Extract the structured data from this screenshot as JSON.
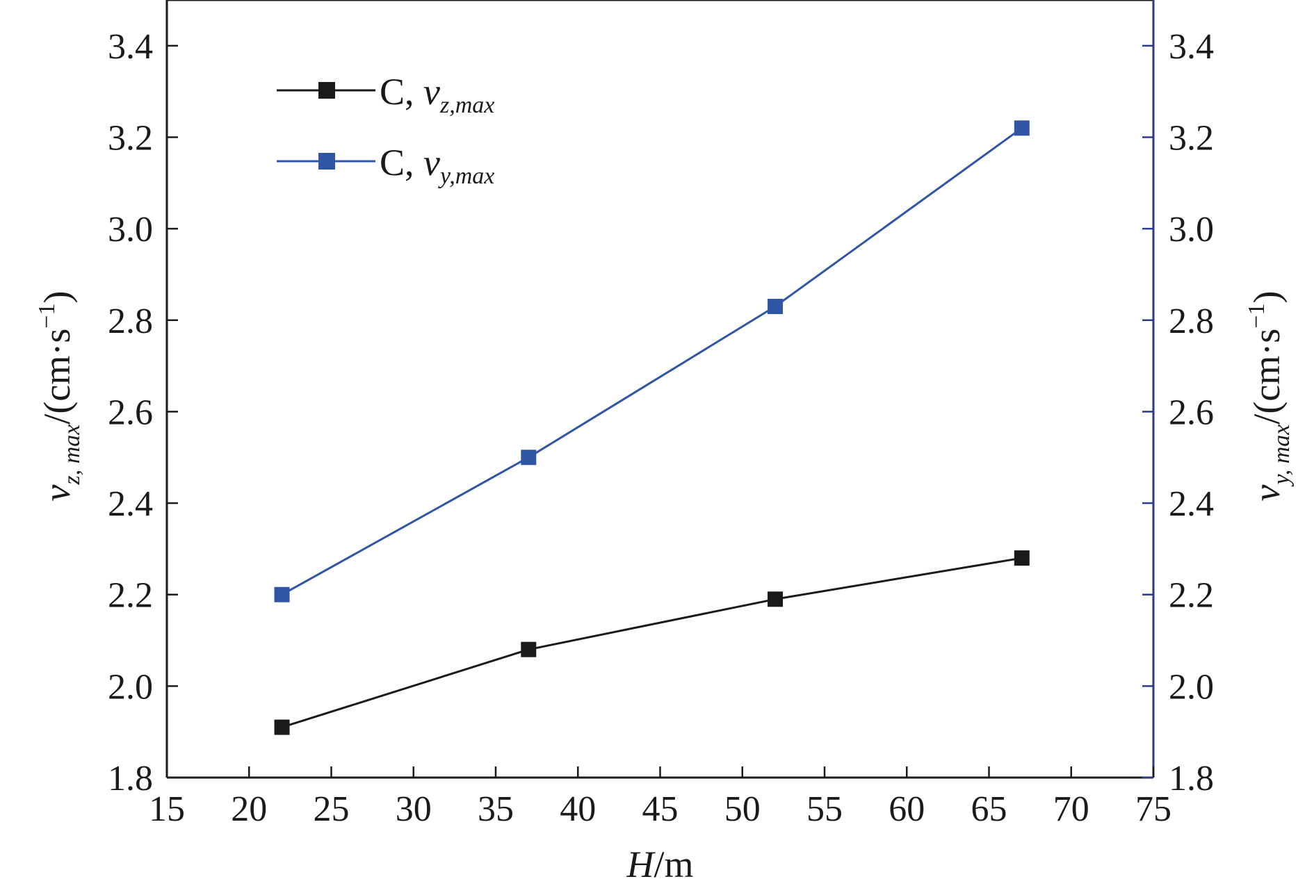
{
  "chart_data": {
    "type": "line",
    "x_axis": {
      "label_italic": "H",
      "label_unit": "/m",
      "range": [
        15,
        75
      ],
      "ticks": [
        15,
        20,
        25,
        30,
        35,
        40,
        45,
        50,
        55,
        60,
        65,
        70,
        75
      ],
      "tick_labels": [
        "15",
        "20",
        "25",
        "30",
        "35",
        "40",
        "45",
        "50",
        "55",
        "60",
        "65",
        "70",
        "75"
      ]
    },
    "y_left": {
      "label_var": "v",
      "label_sub": "z, max",
      "label_unit_prefix": "/(cm·s",
      "label_sup": "−1",
      "label_unit_suffix": ")",
      "range": [
        1.8,
        3.5
      ],
      "ticks": [
        1.8,
        2.0,
        2.2,
        2.4,
        2.6,
        2.8,
        3.0,
        3.2,
        3.4
      ],
      "tick_labels": [
        "1.8",
        "2.0",
        "2.2",
        "2.4",
        "2.6",
        "2.8",
        "3.0",
        "3.2",
        "3.4"
      ]
    },
    "y_right": {
      "label_var": "v",
      "label_sub": "y, max",
      "label_unit_prefix": "/(cm·s",
      "label_sup": "−1",
      "label_unit_suffix": ")",
      "range": [
        1.8,
        3.5
      ],
      "ticks": [
        1.8,
        2.0,
        2.2,
        2.4,
        2.6,
        2.8,
        3.0,
        3.2,
        3.4
      ],
      "tick_labels": [
        "1.8",
        "2.0",
        "2.2",
        "2.4",
        "2.6",
        "2.8",
        "3.0",
        "3.2",
        "3.4"
      ]
    },
    "x": [
      22,
      37,
      52,
      67
    ],
    "series": [
      {
        "name": "C, v_z,max",
        "legend_prefix": "C, ",
        "legend_var": "v",
        "legend_sub": "z,max",
        "axis": "left",
        "color": "#1a1a1a",
        "marker": "square",
        "values": [
          1.91,
          2.08,
          2.19,
          2.28
        ]
      },
      {
        "name": "C, v_y,max",
        "legend_prefix": "C, ",
        "legend_var": "v",
        "legend_sub": "y,max",
        "axis": "right",
        "color": "#2f55a4",
        "marker": "square",
        "values": [
          2.2,
          2.5,
          2.83,
          3.22
        ]
      }
    ],
    "legend_position": "top-left",
    "grid": false,
    "right_axis_color": "#2b3a8a"
  }
}
